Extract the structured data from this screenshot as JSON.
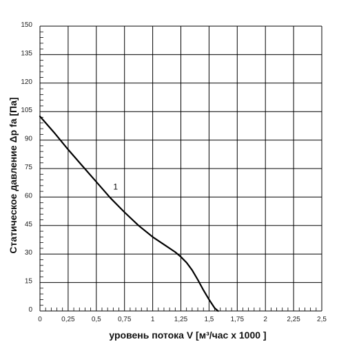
{
  "chart_data": {
    "type": "line",
    "xlabel": "уровень потока  V [м³/час x 1000 ]",
    "ylabel": "Статическое давление  Δp fa [Па]",
    "xlim": [
      0,
      2.5
    ],
    "ylim": [
      0,
      150
    ],
    "x_ticks": [
      0,
      0.25,
      0.5,
      0.75,
      1,
      1.25,
      1.5,
      1.75,
      2,
      2.25,
      2.5
    ],
    "x_tick_labels": [
      "0",
      "0,25",
      "0,5",
      "0,75",
      "1",
      "1,25",
      "1,5",
      "1,75",
      "2",
      "2,25",
      "2,5"
    ],
    "y_ticks": [
      0,
      15,
      30,
      45,
      60,
      75,
      90,
      105,
      120,
      135,
      150
    ],
    "y_tick_labels": [
      "0",
      "15",
      "30",
      "45",
      "60",
      "75",
      "90",
      "105",
      "120",
      "135",
      "150"
    ],
    "grid": true,
    "series": [
      {
        "name": "1",
        "x": [
          0,
          0.125,
          0.25,
          0.375,
          0.5,
          0.625,
          0.75,
          0.875,
          1.0,
          1.1,
          1.2,
          1.25,
          1.3,
          1.35,
          1.4,
          1.45,
          1.5,
          1.55,
          1.58
        ],
        "y": [
          102.5,
          94,
          85,
          76.5,
          68,
          59.5,
          52,
          45,
          39,
          35,
          31,
          28.5,
          25.5,
          21.5,
          16.5,
          11,
          6,
          1.5,
          0
        ]
      }
    ],
    "annotations": [
      {
        "text": "1",
        "x": 0.65,
        "y": 64
      }
    ]
  }
}
